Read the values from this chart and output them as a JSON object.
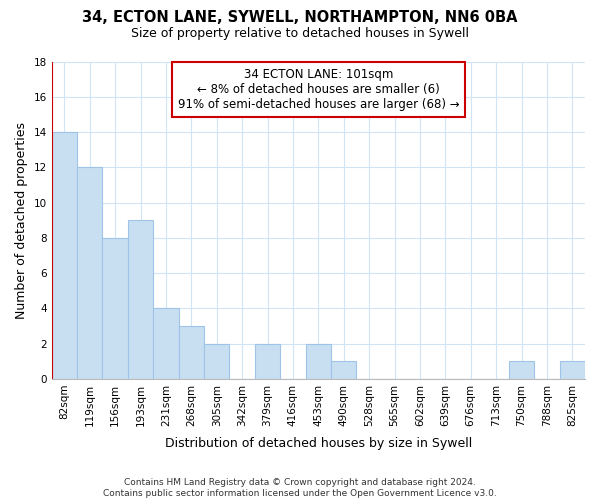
{
  "title": "34, ECTON LANE, SYWELL, NORTHAMPTON, NN6 0BA",
  "subtitle": "Size of property relative to detached houses in Sywell",
  "xlabel": "Distribution of detached houses by size in Sywell",
  "ylabel": "Number of detached properties",
  "bar_labels": [
    "82sqm",
    "119sqm",
    "156sqm",
    "193sqm",
    "231sqm",
    "268sqm",
    "305sqm",
    "342sqm",
    "379sqm",
    "416sqm",
    "453sqm",
    "490sqm",
    "528sqm",
    "565sqm",
    "602sqm",
    "639sqm",
    "676sqm",
    "713sqm",
    "750sqm",
    "788sqm",
    "825sqm"
  ],
  "bar_values": [
    14,
    12,
    8,
    9,
    4,
    3,
    2,
    0,
    2,
    0,
    2,
    1,
    0,
    0,
    0,
    0,
    0,
    0,
    1,
    0,
    1
  ],
  "bar_color": "#c8dff2",
  "bar_edge_color": "#a0c4e8",
  "annotation_line1": "34 ECTON LANE: 101sqm",
  "annotation_line2": "← 8% of detached houses are smaller (6)",
  "annotation_line3": "91% of semi-detached houses are larger (68) →",
  "annotation_box_edgecolor": "#cc0000",
  "annotation_box_facecolor": "#ffffff",
  "redline_x": 0.5,
  "ylim": [
    0,
    18
  ],
  "yticks": [
    0,
    2,
    4,
    6,
    8,
    10,
    12,
    14,
    16,
    18
  ],
  "grid_color": "#d0e4f5",
  "footer_line1": "Contains HM Land Registry data © Crown copyright and database right 2024.",
  "footer_line2": "Contains public sector information licensed under the Open Government Licence v3.0.",
  "title_fontsize": 10.5,
  "subtitle_fontsize": 9,
  "axis_label_fontsize": 9,
  "tick_fontsize": 7.5,
  "annotation_fontsize": 8.5,
  "footer_fontsize": 6.5
}
